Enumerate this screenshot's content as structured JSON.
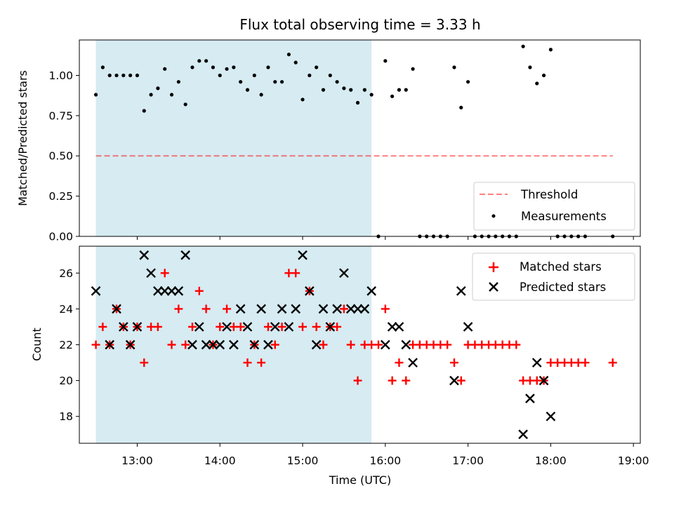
{
  "chart_data": [
    {
      "type": "scatter",
      "title": "Flux total observing time = 3.33 h",
      "ylabel": "Matched/Predicted stars",
      "xlabel": "",
      "xlim": [
        "12:18",
        "19:05"
      ],
      "ylim": [
        0,
        1.22
      ],
      "yticks": [
        0,
        0.25,
        0.5,
        0.75,
        1.0
      ],
      "ytick_labels": [
        "0.00",
        "0.25",
        "0.50",
        "0.75",
        "1.00"
      ],
      "shaded_span": {
        "x_start": "12:30",
        "x_end": "15:50",
        "color": "#add8e6"
      },
      "threshold": {
        "name": "Threshold",
        "y": 0.5,
        "x_start": "12:30",
        "x_end": "18:45",
        "color": "#ff0000",
        "style": "dashed"
      },
      "legend": {
        "position": "lower-right",
        "entries": [
          "Threshold",
          "Measurements"
        ]
      },
      "series": [
        {
          "name": "Measurements",
          "marker": "dot",
          "color": "#000000",
          "points": [
            [
              "12:30",
              0.88
            ],
            [
              "12:35",
              1.05
            ],
            [
              "12:40",
              1.0
            ],
            [
              "12:45",
              1.0
            ],
            [
              "12:50",
              1.0
            ],
            [
              "12:55",
              1.0
            ],
            [
              "13:00",
              1.0
            ],
            [
              "13:05",
              0.78
            ],
            [
              "13:10",
              0.88
            ],
            [
              "13:15",
              0.92
            ],
            [
              "13:20",
              1.04
            ],
            [
              "13:25",
              0.88
            ],
            [
              "13:30",
              0.96
            ],
            [
              "13:35",
              0.82
            ],
            [
              "13:40",
              1.05
            ],
            [
              "13:45",
              1.09
            ],
            [
              "13:50",
              1.09
            ],
            [
              "13:55",
              1.05
            ],
            [
              "14:00",
              1.0
            ],
            [
              "14:05",
              1.04
            ],
            [
              "14:10",
              1.05
            ],
            [
              "14:15",
              0.96
            ],
            [
              "14:20",
              0.91
            ],
            [
              "14:25",
              1.0
            ],
            [
              "14:30",
              0.88
            ],
            [
              "14:35",
              1.05
            ],
            [
              "14:40",
              0.96
            ],
            [
              "14:45",
              0.96
            ],
            [
              "14:50",
              1.13
            ],
            [
              "14:55",
              1.08
            ],
            [
              "15:00",
              0.85
            ],
            [
              "15:05",
              1.0
            ],
            [
              "15:10",
              1.05
            ],
            [
              "15:15",
              0.91
            ],
            [
              "15:20",
              1.0
            ],
            [
              "15:25",
              0.96
            ],
            [
              "15:30",
              0.92
            ],
            [
              "15:35",
              0.91
            ],
            [
              "15:40",
              0.83
            ],
            [
              "15:45",
              0.91
            ],
            [
              "15:50",
              0.88
            ],
            [
              "15:55",
              0.0
            ],
            [
              "16:00",
              1.09
            ],
            [
              "16:05",
              0.87
            ],
            [
              "16:10",
              0.91
            ],
            [
              "16:15",
              0.91
            ],
            [
              "16:20",
              1.04
            ],
            [
              "16:25",
              0.0
            ],
            [
              "16:30",
              0.0
            ],
            [
              "16:35",
              0.0
            ],
            [
              "16:40",
              0.0
            ],
            [
              "16:45",
              0.0
            ],
            [
              "16:50",
              1.05
            ],
            [
              "16:55",
              0.8
            ],
            [
              "17:00",
              0.96
            ],
            [
              "17:05",
              0.0
            ],
            [
              "17:10",
              0.0
            ],
            [
              "17:15",
              0.0
            ],
            [
              "17:20",
              0.0
            ],
            [
              "17:25",
              0.0
            ],
            [
              "17:30",
              0.0
            ],
            [
              "17:35",
              0.0
            ],
            [
              "17:40",
              1.18
            ],
            [
              "17:45",
              1.05
            ],
            [
              "17:50",
              0.95
            ],
            [
              "17:55",
              1.0
            ],
            [
              "18:00",
              1.16
            ],
            [
              "18:05",
              0.0
            ],
            [
              "18:10",
              0.0
            ],
            [
              "18:15",
              0.0
            ],
            [
              "18:20",
              0.0
            ],
            [
              "18:25",
              0.0
            ],
            [
              "18:45",
              0.0
            ]
          ]
        }
      ]
    },
    {
      "type": "scatter",
      "title": "",
      "ylabel": "Count",
      "xlabel": "Time (UTC)",
      "xlim": [
        "12:18",
        "19:05"
      ],
      "ylim": [
        16.5,
        27.5
      ],
      "yticks": [
        18,
        20,
        22,
        24,
        26
      ],
      "ytick_labels": [
        "18",
        "20",
        "22",
        "24",
        "26"
      ],
      "xticks": [
        "13:00",
        "14:00",
        "15:00",
        "16:00",
        "17:00",
        "18:00",
        "19:00"
      ],
      "shaded_span": {
        "x_start": "12:30",
        "x_end": "15:50",
        "color": "#add8e6"
      },
      "legend": {
        "position": "top-right",
        "entries": [
          "Matched stars",
          "Predicted stars"
        ]
      },
      "series": [
        {
          "name": "Matched stars",
          "marker": "plus",
          "color": "#ff0000",
          "points": [
            [
              "12:30",
              22
            ],
            [
              "12:35",
              23
            ],
            [
              "12:40",
              22
            ],
            [
              "12:45",
              24
            ],
            [
              "12:50",
              23
            ],
            [
              "12:55",
              22
            ],
            [
              "13:00",
              23
            ],
            [
              "13:05",
              21
            ],
            [
              "13:10",
              23
            ],
            [
              "13:15",
              23
            ],
            [
              "13:20",
              26
            ],
            [
              "13:25",
              22
            ],
            [
              "13:30",
              24
            ],
            [
              "13:35",
              22
            ],
            [
              "13:40",
              23
            ],
            [
              "13:45",
              25
            ],
            [
              "13:50",
              24
            ],
            [
              "13:55",
              22
            ],
            [
              "14:00",
              23
            ],
            [
              "14:05",
              24
            ],
            [
              "14:10",
              23
            ],
            [
              "14:15",
              23
            ],
            [
              "14:20",
              21
            ],
            [
              "14:25",
              22
            ],
            [
              "14:30",
              21
            ],
            [
              "14:35",
              23
            ],
            [
              "14:40",
              22
            ],
            [
              "14:45",
              23
            ],
            [
              "14:50",
              26
            ],
            [
              "14:55",
              26
            ],
            [
              "15:00",
              23
            ],
            [
              "15:05",
              25
            ],
            [
              "15:10",
              23
            ],
            [
              "15:15",
              22
            ],
            [
              "15:20",
              23
            ],
            [
              "15:25",
              23
            ],
            [
              "15:30",
              24
            ],
            [
              "15:35",
              22
            ],
            [
              "15:40",
              20
            ],
            [
              "15:45",
              22
            ],
            [
              "15:50",
              22
            ],
            [
              "15:55",
              22
            ],
            [
              "16:00",
              24
            ],
            [
              "16:05",
              20
            ],
            [
              "16:10",
              21
            ],
            [
              "16:15",
              20
            ],
            [
              "16:20",
              22
            ],
            [
              "16:25",
              22
            ],
            [
              "16:30",
              22
            ],
            [
              "16:35",
              22
            ],
            [
              "16:40",
              22
            ],
            [
              "16:45",
              22
            ],
            [
              "16:50",
              21
            ],
            [
              "16:55",
              20
            ],
            [
              "17:00",
              22
            ],
            [
              "17:05",
              22
            ],
            [
              "17:10",
              22
            ],
            [
              "17:15",
              22
            ],
            [
              "17:20",
              22
            ],
            [
              "17:25",
              22
            ],
            [
              "17:30",
              22
            ],
            [
              "17:35",
              22
            ],
            [
              "17:40",
              20
            ],
            [
              "17:45",
              20
            ],
            [
              "17:50",
              20
            ],
            [
              "17:55",
              20
            ],
            [
              "18:00",
              21
            ],
            [
              "18:05",
              21
            ],
            [
              "18:10",
              21
            ],
            [
              "18:15",
              21
            ],
            [
              "18:20",
              21
            ],
            [
              "18:25",
              21
            ],
            [
              "18:45",
              21
            ]
          ]
        },
        {
          "name": "Predicted stars",
          "marker": "x",
          "color": "#000000",
          "points": [
            [
              "12:30",
              25
            ],
            [
              "12:40",
              22
            ],
            [
              "12:45",
              24
            ],
            [
              "12:50",
              23
            ],
            [
              "12:55",
              22
            ],
            [
              "13:00",
              23
            ],
            [
              "13:05",
              27
            ],
            [
              "13:10",
              26
            ],
            [
              "13:15",
              25
            ],
            [
              "13:20",
              25
            ],
            [
              "13:25",
              25
            ],
            [
              "13:30",
              25
            ],
            [
              "13:35",
              27
            ],
            [
              "13:40",
              22
            ],
            [
              "13:45",
              23
            ],
            [
              "13:50",
              22
            ],
            [
              "13:55",
              22
            ],
            [
              "14:00",
              22
            ],
            [
              "14:05",
              23
            ],
            [
              "14:10",
              22
            ],
            [
              "14:15",
              24
            ],
            [
              "14:20",
              23
            ],
            [
              "14:25",
              22
            ],
            [
              "14:30",
              24
            ],
            [
              "14:35",
              22
            ],
            [
              "14:40",
              23
            ],
            [
              "14:45",
              24
            ],
            [
              "14:50",
              23
            ],
            [
              "14:55",
              24
            ],
            [
              "15:00",
              27
            ],
            [
              "15:05",
              25
            ],
            [
              "15:10",
              22
            ],
            [
              "15:15",
              24
            ],
            [
              "15:20",
              23
            ],
            [
              "15:25",
              24
            ],
            [
              "15:30",
              26
            ],
            [
              "15:35",
              24
            ],
            [
              "15:40",
              24
            ],
            [
              "15:45",
              24
            ],
            [
              "15:50",
              25
            ],
            [
              "16:00",
              22
            ],
            [
              "16:05",
              23
            ],
            [
              "16:10",
              23
            ],
            [
              "16:15",
              22
            ],
            [
              "16:20",
              21
            ],
            [
              "16:50",
              20
            ],
            [
              "16:55",
              25
            ],
            [
              "17:00",
              23
            ],
            [
              "17:40",
              17
            ],
            [
              "17:45",
              19
            ],
            [
              "17:50",
              21
            ],
            [
              "17:55",
              20
            ],
            [
              "18:00",
              18
            ]
          ]
        }
      ]
    }
  ]
}
